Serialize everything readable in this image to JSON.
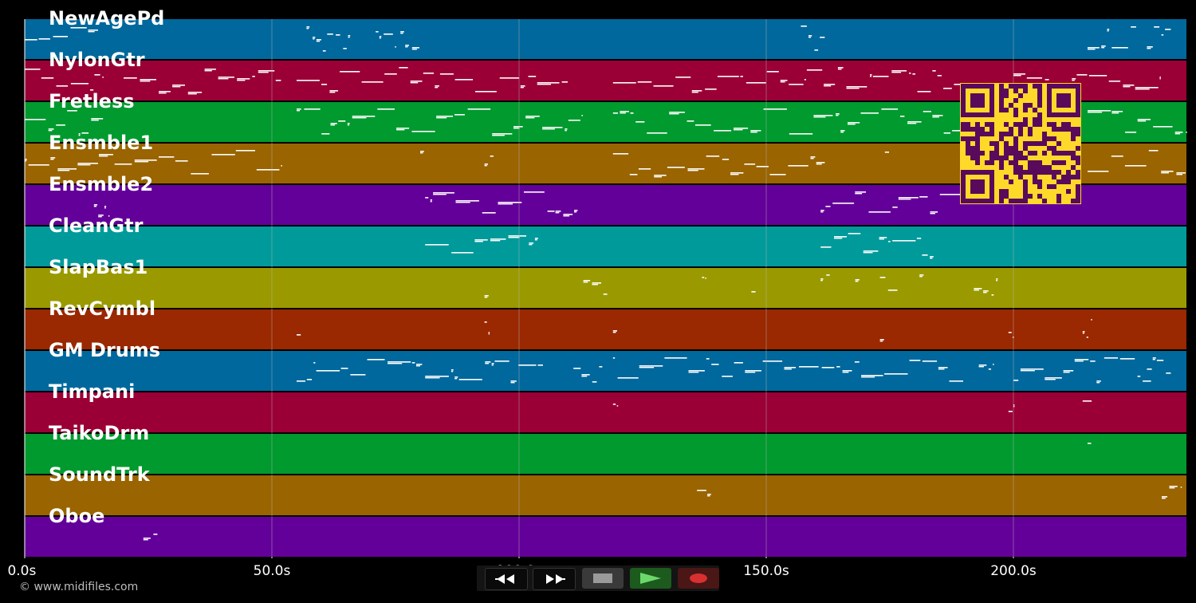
{
  "chart_data": {
    "type": "piano-roll",
    "xlabel": "",
    "xlim": [
      0,
      235
    ],
    "x_ticks": [
      {
        "value": 0,
        "label": "0.0s"
      },
      {
        "value": 50,
        "label": "50.0s"
      },
      {
        "value": 100,
        "label": "100.0s"
      },
      {
        "value": 150,
        "label": "150.0s"
      },
      {
        "value": 200,
        "label": "200.0s"
      }
    ],
    "tracks": [
      {
        "name": "NewAgePd",
        "color": "#00689c",
        "activity": [
          [
            0,
            15
          ],
          [
            57,
            66
          ],
          [
            71,
            75
          ],
          [
            76,
            80
          ],
          [
            157,
            162
          ],
          [
            215,
            225
          ],
          [
            227,
            232
          ]
        ]
      },
      {
        "name": "NylonGtr",
        "color": "#9a0035",
        "activity": [
          [
            0,
            16
          ],
          [
            20,
            52
          ],
          [
            55,
            110
          ],
          [
            119,
            190
          ],
          [
            200,
            230
          ]
        ]
      },
      {
        "name": "Fretless",
        "color": "#009a2e",
        "activity": [
          [
            0,
            16
          ],
          [
            55,
            113
          ],
          [
            119,
            190
          ],
          [
            215,
            235
          ]
        ]
      },
      {
        "name": "Ensmble1",
        "color": "#9a6400",
        "activity": [
          [
            0,
            15
          ],
          [
            15,
            52
          ],
          [
            80,
            81
          ],
          [
            93,
            95
          ],
          [
            119,
            162
          ],
          [
            174,
            175
          ],
          [
            215,
            235
          ]
        ]
      },
      {
        "name": "Ensmble2",
        "color": "#64009a",
        "activity": [
          [
            14,
            17
          ],
          [
            81,
            112
          ],
          [
            161,
            190
          ]
        ]
      },
      {
        "name": "CleanGtr",
        "color": "#009a9a",
        "activity": [
          [
            81,
            104
          ],
          [
            161,
            184
          ]
        ]
      },
      {
        "name": "SlapBas1",
        "color": "#9a9a00",
        "activity": [
          [
            93,
            94
          ],
          [
            113,
            118
          ],
          [
            137,
            138
          ],
          [
            147,
            148
          ],
          [
            161,
            163
          ],
          [
            168,
            169
          ],
          [
            173,
            177
          ],
          [
            181,
            182
          ],
          [
            192,
            197
          ]
        ]
      },
      {
        "name": "RevCymbl",
        "color": "#9a2800",
        "activity": [
          [
            55,
            56
          ],
          [
            93,
            94
          ],
          [
            119,
            120
          ],
          [
            173,
            174
          ],
          [
            199,
            200
          ],
          [
            214,
            216
          ]
        ]
      },
      {
        "name": "GM Drums",
        "color": "#00689c",
        "activity": [
          [
            55,
            105
          ],
          [
            111,
            117
          ],
          [
            119,
            190
          ],
          [
            193,
            196
          ],
          [
            200,
            228
          ],
          [
            229,
            232
          ],
          [
            227,
            229
          ]
        ]
      },
      {
        "name": "Timpani",
        "color": "#9a0035",
        "activity": [
          [
            119,
            120
          ],
          [
            199,
            200
          ],
          [
            214,
            216
          ]
        ]
      },
      {
        "name": "TaikoDrm",
        "color": "#009a2e",
        "activity": [
          [
            215,
            216
          ]
        ]
      },
      {
        "name": "SoundTrk",
        "color": "#9a6400",
        "activity": [
          [
            136,
            139
          ],
          [
            230,
            234
          ]
        ]
      },
      {
        "name": "Oboe",
        "color": "#64009a",
        "activity": [
          [
            24,
            27
          ]
        ]
      }
    ]
  },
  "footer": {
    "copyright": "© www.midifiles.com"
  },
  "transport": {
    "rewind_icon": "rewind-icon",
    "fast_forward_icon": "fast-forward-icon",
    "stop_icon": "stop-icon",
    "play_icon": "play-icon",
    "record_icon": "record-icon"
  },
  "colors": {
    "background": "#000000",
    "grid": "#b4b4b4",
    "note": "#ffffff",
    "qr_fg": "#5a0a5a",
    "qr_bg": "#ffd92a"
  }
}
